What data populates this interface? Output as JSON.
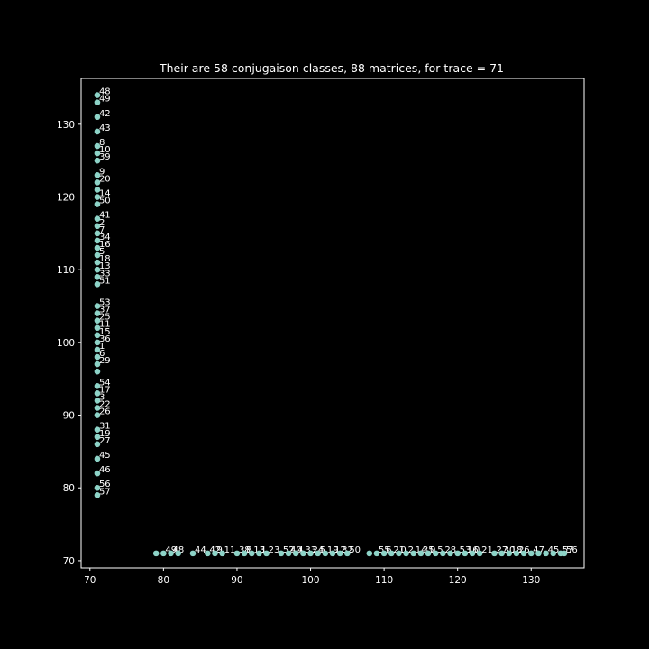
{
  "chart_data": {
    "type": "scatter",
    "title": "Their are 58 conjugaison classes, 88 matrices, for trace = 71",
    "xlabel": "",
    "ylabel": "",
    "xlim": [
      68.8,
      137.2
    ],
    "ylim": [
      69.0,
      136.3
    ],
    "xticks": [
      70,
      80,
      90,
      100,
      110,
      120,
      130
    ],
    "yticks": [
      70,
      80,
      90,
      100,
      110,
      120,
      130
    ],
    "grid": false,
    "point_color": "#8dd3c7",
    "series": [
      {
        "points": [
          {
            "x": 71,
            "y": 134,
            "label": "48"
          },
          {
            "x": 71,
            "y": 133,
            "label": "49"
          },
          {
            "x": 71,
            "y": 131,
            "label": "42"
          },
          {
            "x": 71,
            "y": 129,
            "label": "43"
          },
          {
            "x": 71,
            "y": 127,
            "label": "8"
          },
          {
            "x": 71,
            "y": 126,
            "label": "10"
          },
          {
            "x": 71,
            "y": 125,
            "label": "39"
          },
          {
            "x": 71,
            "y": 123,
            "label": "9"
          },
          {
            "x": 71,
            "y": 122,
            "label": "20"
          },
          {
            "x": 71,
            "y": 121,
            "label": ""
          },
          {
            "x": 71,
            "y": 120,
            "label": "14"
          },
          {
            "x": 71,
            "y": 119,
            "label": "50"
          },
          {
            "x": 71,
            "y": 117,
            "label": "41"
          },
          {
            "x": 71,
            "y": 116,
            "label": "2"
          },
          {
            "x": 71,
            "y": 115,
            "label": "7"
          },
          {
            "x": 71,
            "y": 114,
            "label": "34"
          },
          {
            "x": 71,
            "y": 113,
            "label": "16"
          },
          {
            "x": 71,
            "y": 112,
            "label": "5"
          },
          {
            "x": 71,
            "y": 111,
            "label": "18"
          },
          {
            "x": 71,
            "y": 110,
            "label": "13"
          },
          {
            "x": 71,
            "y": 109,
            "label": "33"
          },
          {
            "x": 71,
            "y": 108,
            "label": "51"
          },
          {
            "x": 71,
            "y": 105,
            "label": "53"
          },
          {
            "x": 71,
            "y": 104,
            "label": "37"
          },
          {
            "x": 71,
            "y": 103,
            "label": "25"
          },
          {
            "x": 71,
            "y": 102,
            "label": "11"
          },
          {
            "x": 71,
            "y": 101,
            "label": "15"
          },
          {
            "x": 71,
            "y": 100,
            "label": "36"
          },
          {
            "x": 71,
            "y": 99,
            "label": "1"
          },
          {
            "x": 71,
            "y": 98,
            "label": "6"
          },
          {
            "x": 71,
            "y": 97,
            "label": "29"
          },
          {
            "x": 71,
            "y": 96,
            "label": ""
          },
          {
            "x": 71,
            "y": 94,
            "label": "54"
          },
          {
            "x": 71,
            "y": 93,
            "label": "17"
          },
          {
            "x": 71,
            "y": 92,
            "label": "3"
          },
          {
            "x": 71,
            "y": 91,
            "label": "22"
          },
          {
            "x": 71,
            "y": 90,
            "label": "26"
          },
          {
            "x": 71,
            "y": 88,
            "label": "31"
          },
          {
            "x": 71,
            "y": 87,
            "label": "19"
          },
          {
            "x": 71,
            "y": 86,
            "label": "27"
          },
          {
            "x": 71,
            "y": 84,
            "label": "45"
          },
          {
            "x": 71,
            "y": 82,
            "label": "46"
          },
          {
            "x": 71,
            "y": 80,
            "label": "56"
          },
          {
            "x": 71,
            "y": 79,
            "label": "57"
          },
          {
            "x": 79,
            "y": 71,
            "label": ""
          },
          {
            "x": 80,
            "y": 71,
            "label": "49"
          },
          {
            "x": 81,
            "y": 71,
            "label": "48"
          },
          {
            "x": 82,
            "y": 71,
            "label": ""
          },
          {
            "x": 84,
            "y": 71,
            "label": "44"
          },
          {
            "x": 86,
            "y": 71,
            "label": "42"
          },
          {
            "x": 87,
            "y": 71,
            "label": "9"
          },
          {
            "x": 88,
            "y": 71,
            "label": "11"
          },
          {
            "x": 90,
            "y": 71,
            "label": "38"
          },
          {
            "x": 91,
            "y": 71,
            "label": "8"
          },
          {
            "x": 92,
            "y": 71,
            "label": "13"
          },
          {
            "x": 93,
            "y": 71,
            "label": "1"
          },
          {
            "x": 94,
            "y": 71,
            "label": "23"
          },
          {
            "x": 96,
            "y": 71,
            "label": "52"
          },
          {
            "x": 97,
            "y": 71,
            "label": "40"
          },
          {
            "x": 98,
            "y": 71,
            "label": "4"
          },
          {
            "x": 99,
            "y": 71,
            "label": "33"
          },
          {
            "x": 100,
            "y": 71,
            "label": "24"
          },
          {
            "x": 101,
            "y": 71,
            "label": "5"
          },
          {
            "x": 102,
            "y": 71,
            "label": "19"
          },
          {
            "x": 103,
            "y": 71,
            "label": "12"
          },
          {
            "x": 104,
            "y": 71,
            "label": "32"
          },
          {
            "x": 105,
            "y": 71,
            "label": "50"
          },
          {
            "x": 108,
            "y": 71,
            "label": ""
          },
          {
            "x": 109,
            "y": 71,
            "label": "55"
          },
          {
            "x": 110,
            "y": 71,
            "label": "6"
          },
          {
            "x": 111,
            "y": 71,
            "label": "21"
          },
          {
            "x": 112,
            "y": 71,
            "label": "0"
          },
          {
            "x": 113,
            "y": 71,
            "label": "2"
          },
          {
            "x": 114,
            "y": 71,
            "label": "14"
          },
          {
            "x": 115,
            "y": 71,
            "label": "35"
          },
          {
            "x": 116,
            "y": 71,
            "label": "0"
          },
          {
            "x": 117,
            "y": 71,
            "label": "5"
          },
          {
            "x": 118,
            "y": 71,
            "label": "28"
          },
          {
            "x": 119,
            "y": 71,
            "label": ""
          },
          {
            "x": 120,
            "y": 71,
            "label": "53"
          },
          {
            "x": 121,
            "y": 71,
            "label": "16"
          },
          {
            "x": 122,
            "y": 71,
            "label": "0"
          },
          {
            "x": 123,
            "y": 71,
            "label": "21"
          },
          {
            "x": 125,
            "y": 71,
            "label": "27"
          },
          {
            "x": 126,
            "y": 71,
            "label": "30"
          },
          {
            "x": 127,
            "y": 71,
            "label": "18"
          },
          {
            "x": 128,
            "y": 71,
            "label": "26"
          },
          {
            "x": 129,
            "y": 71,
            "label": ""
          },
          {
            "x": 130,
            "y": 71,
            "label": "47"
          },
          {
            "x": 131,
            "y": 71,
            "label": ""
          },
          {
            "x": 132,
            "y": 71,
            "label": "45"
          },
          {
            "x": 133,
            "y": 71,
            "label": ""
          },
          {
            "x": 134,
            "y": 71,
            "label": "57"
          },
          {
            "x": 134.5,
            "y": 71,
            "label": "56"
          }
        ]
      }
    ]
  }
}
